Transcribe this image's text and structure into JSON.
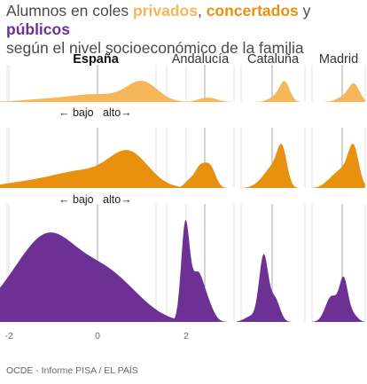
{
  "title": {
    "line1_prefix": "Alumnos en coles ",
    "privados": "privados",
    "sep1": ", ",
    "concertados": "concertados",
    "sep2": " y ",
    "publicos": "públicos",
    "line2": "según el nivel socioeconómico de la familia"
  },
  "source": "OCDE - Informe PISA / EL PAÍS",
  "colors": {
    "privados": "#f5b75a",
    "concertados": "#e8900f",
    "publicos": "#6d3196",
    "gridline": "#e3e3e3",
    "zero_line": "#aaaaaa"
  },
  "chart_data": {
    "type": "area",
    "subtype": "density-ridgeline-small-multiples",
    "x_ticks": [
      -2,
      0,
      2
    ],
    "x_tick_labels": [
      "-2",
      "0",
      "2"
    ],
    "direction_labels": {
      "low": "← bajo",
      "high": "alto→"
    },
    "regions": [
      {
        "name": "España",
        "emphasis": true,
        "xlim": [
          -3.5,
          2.5
        ]
      },
      {
        "name": "Andalucía",
        "emphasis": false,
        "xlim": [
          -2.5,
          2.0
        ]
      },
      {
        "name": "Cataluña",
        "emphasis": false,
        "xlim": [
          -2.5,
          2.0
        ]
      },
      {
        "name": "Madrid",
        "emphasis": false,
        "xlim": [
          -2.0,
          1.5
        ]
      }
    ],
    "series": [
      {
        "name": "privados",
        "components": {
          "España": [
            [
              1.0,
              0.35,
              0.18
            ],
            [
              0.0,
              0.5,
              0.06
            ],
            [
              -1.0,
              0.6,
              0.03
            ]
          ],
          "Andalucía": [
            [
              0.2,
              0.6,
              0.04
            ]
          ],
          "Cataluña": [
            [
              0.9,
              0.35,
              0.16
            ],
            [
              0.3,
              0.5,
              0.05
            ]
          ],
          "Madrid": [
            [
              0.8,
              0.35,
              0.14
            ],
            [
              0.2,
              0.5,
              0.05
            ]
          ]
        }
      },
      {
        "name": "concertados",
        "components": {
          "España": [
            [
              0.7,
              0.45,
              0.38
            ],
            [
              -0.4,
              0.6,
              0.17
            ],
            [
              -1.6,
              0.6,
              0.06
            ]
          ],
          "Andalucía": [
            [
              -0.3,
              0.4,
              0.23
            ],
            [
              0.4,
              0.35,
              0.2
            ],
            [
              -1.1,
              0.3,
              0.06
            ]
          ],
          "Cataluña": [
            [
              0.7,
              0.35,
              0.4
            ],
            [
              0.0,
              0.5,
              0.2
            ],
            [
              -0.8,
              0.5,
              0.05
            ]
          ],
          "Madrid": [
            [
              0.75,
              0.35,
              0.42
            ],
            [
              0.0,
              0.5,
              0.18
            ],
            [
              -0.8,
              0.45,
              0.06
            ]
          ]
        }
      },
      {
        "name": "públicos",
        "components": {
          "España": [
            [
              -1.1,
              0.7,
              0.95
            ],
            [
              0.2,
              0.55,
              0.4
            ],
            [
              0.9,
              0.5,
              0.12
            ],
            [
              -2.2,
              0.5,
              0.1
            ]
          ],
          "Andalucía": [
            [
              -1.3,
              0.28,
              1.05
            ],
            [
              -0.5,
              0.4,
              0.5
            ],
            [
              0.2,
              0.4,
              0.18
            ]
          ],
          "Cataluña": [
            [
              -0.6,
              0.32,
              0.72
            ],
            [
              0.2,
              0.35,
              0.25
            ],
            [
              -1.5,
              0.45,
              0.06
            ]
          ],
          "Madrid": [
            [
              0.1,
              0.28,
              0.45
            ],
            [
              -0.7,
              0.4,
              0.28
            ],
            [
              0.7,
              0.3,
              0.08
            ]
          ]
        }
      }
    ]
  }
}
